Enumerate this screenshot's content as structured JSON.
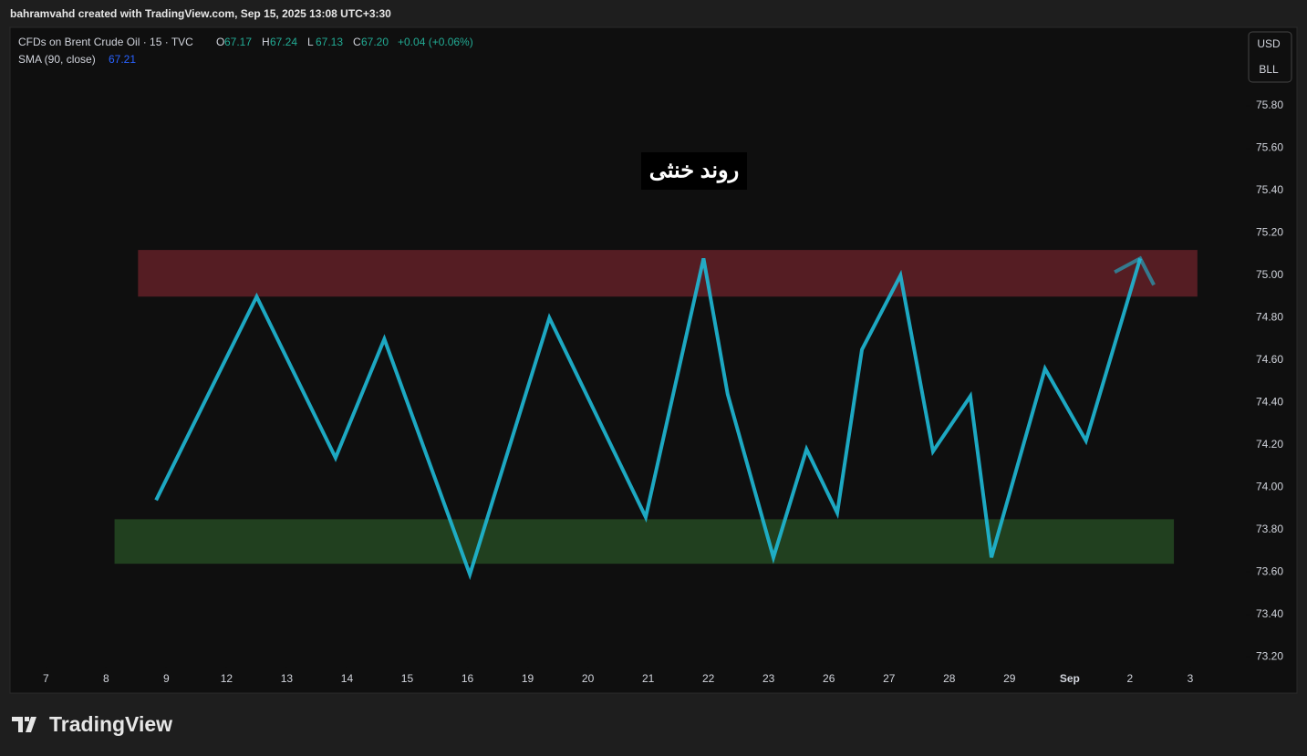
{
  "header": {
    "credit": "bahramvahd created with TradingView.com, Sep 15, 2025 13:08 UTC+3:30",
    "symbol": "CFDs on Brent Crude Oil · 15 · TVC",
    "ohlc": [
      {
        "key": "O",
        "value": "67.17"
      },
      {
        "key": "H",
        "value": "67.24"
      },
      {
        "key": "L",
        "value": "67.13"
      },
      {
        "key": "C",
        "value": "67.20"
      }
    ],
    "change": "+0.04 (+0.06%)",
    "indicator": "SMA (90, close)",
    "indicator_value": "67.21",
    "currency": "USD",
    "unit": "BLL"
  },
  "footer": {
    "brand": "TradingView"
  },
  "chart_data": {
    "type": "line",
    "annotation": "روند خنثی",
    "xlim": [
      -0.58,
      19.91
    ],
    "ylim": [
      73.03,
      76.17
    ],
    "xticks": [
      {
        "value": 0,
        "label": "7"
      },
      {
        "value": 1,
        "label": "8"
      },
      {
        "value": 2,
        "label": "9"
      },
      {
        "value": 3,
        "label": "12"
      },
      {
        "value": 4,
        "label": "13"
      },
      {
        "value": 5,
        "label": "14"
      },
      {
        "value": 6,
        "label": "15"
      },
      {
        "value": 7,
        "label": "16"
      },
      {
        "value": 8,
        "label": "19"
      },
      {
        "value": 9,
        "label": "20"
      },
      {
        "value": 10,
        "label": "21"
      },
      {
        "value": 11,
        "label": "22"
      },
      {
        "value": 12,
        "label": "23"
      },
      {
        "value": 13,
        "label": "26"
      },
      {
        "value": 14,
        "label": "27"
      },
      {
        "value": 15,
        "label": "28"
      },
      {
        "value": 16,
        "label": "29"
      },
      {
        "value": 17,
        "label": "Sep"
      },
      {
        "value": 18,
        "label": "2"
      },
      {
        "value": 19,
        "label": "3"
      }
    ],
    "yticks": [
      {
        "value": 73.2,
        "label": "73.20"
      },
      {
        "value": 73.4,
        "label": "73.40"
      },
      {
        "value": 73.6,
        "label": "73.60"
      },
      {
        "value": 73.8,
        "label": "73.80"
      },
      {
        "value": 74,
        "label": "74.00"
      },
      {
        "value": 74.2,
        "label": "74.20"
      },
      {
        "value": 74.4,
        "label": "74.40"
      },
      {
        "value": 74.6,
        "label": "74.60"
      },
      {
        "value": 74.8,
        "label": "74.80"
      },
      {
        "value": 75,
        "label": "75.00"
      },
      {
        "value": 75.2,
        "label": "75.20"
      },
      {
        "value": 75.4,
        "label": "75.40"
      },
      {
        "value": 75.6,
        "label": "75.60"
      },
      {
        "value": 75.8,
        "label": "75.80"
      }
    ],
    "zones": [
      {
        "color": "#551d23",
        "x": [
          1.53,
          19.12
        ],
        "y": [
          74.9,
          75.12
        ]
      },
      {
        "color": "#21401f",
        "x": [
          1.14,
          18.73
        ],
        "y": [
          73.64,
          73.85
        ]
      }
    ],
    "x": [
      1.83,
      3.5,
      4.81,
      5.62,
      7.04,
      8.36,
      9.96,
      10.92,
      11.32,
      12.08,
      12.63,
      13.14,
      13.55,
      14.19,
      14.73,
      15.35,
      15.7,
      16.59,
      17.27,
      18.17
    ],
    "series": [
      {
        "color": "#1fb9d6",
        "values": [
          73.94,
          74.9,
          74.14,
          74.7,
          73.59,
          74.8,
          73.86,
          75.08,
          74.44,
          73.67,
          74.18,
          73.88,
          74.65,
          75.0,
          74.17,
          74.43,
          73.67,
          74.56,
          74.22,
          75.08
        ]
      }
    ]
  }
}
